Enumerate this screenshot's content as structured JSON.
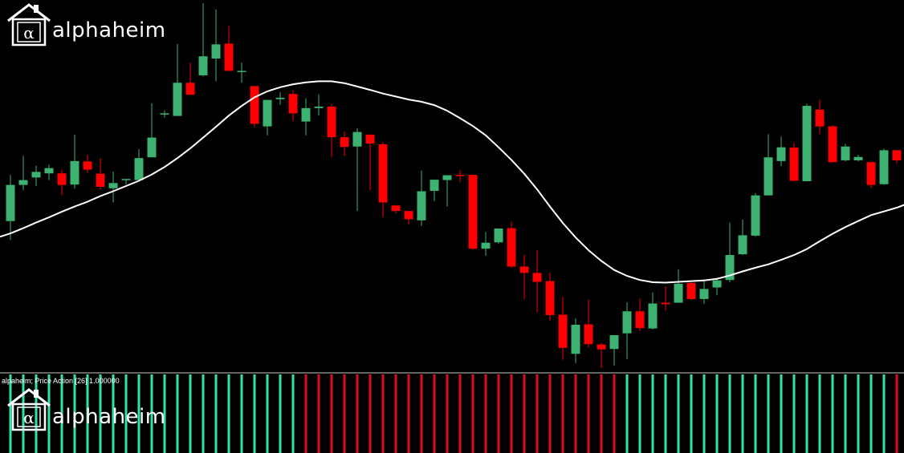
{
  "brand": {
    "name": "alphaheim",
    "symbol": "α"
  },
  "indicator": {
    "label": "alpaheim; Price Action [26] 1.000000"
  },
  "colors": {
    "background": "#000000",
    "bull": "#3cb371",
    "bear": "#ff0000",
    "ma_line": "#ffffff",
    "hist_bull": "#33e6a0",
    "hist_bear": "#e01010",
    "separator": "#c8c8c8"
  },
  "chart_data": {
    "type": "candlestick",
    "title": "",
    "xlabel": "",
    "ylabel": "",
    "ylim": [
      0,
      100
    ],
    "grid": false,
    "ohlc": [
      [
        40.7,
        50.4,
        53.1,
        35.6
      ],
      [
        50.4,
        51.7,
        58.2,
        49.0
      ],
      [
        52.4,
        53.9,
        55.6,
        50.1
      ],
      [
        53.5,
        54.9,
        55.8,
        51.7
      ],
      [
        53.5,
        50.4,
        54.5,
        47.7
      ],
      [
        50.5,
        56.8,
        63.9,
        49.4
      ],
      [
        56.7,
        54.5,
        58.5,
        53.7
      ],
      [
        53.4,
        49.9,
        57.6,
        49.2
      ],
      [
        49.5,
        50.9,
        54.0,
        45.7
      ],
      [
        51.8,
        52.0,
        52.0,
        50.5
      ],
      [
        51.7,
        57.6,
        60.0,
        51.7
      ],
      [
        57.8,
        63.1,
        72.3,
        57.8
      ],
      [
        69.4,
        69.6,
        70.4,
        68.5
      ],
      [
        68.9,
        77.8,
        88.2,
        68.9
      ],
      [
        77.8,
        74.6,
        83.2,
        74.6
      ],
      [
        79.8,
        84.9,
        99.1,
        79.5
      ],
      [
        84.3,
        88.1,
        97.5,
        78.2
      ],
      [
        88.3,
        81.0,
        93.0,
        81.0
      ],
      [
        81.0,
        81.0,
        83.2,
        77.8
      ],
      [
        76.9,
        66.8,
        76.9,
        65.8
      ],
      [
        66.1,
        73.2,
        73.2,
        63.7
      ],
      [
        73.4,
        73.8,
        75.3,
        71.9
      ],
      [
        74.8,
        69.6,
        75.8,
        67.5
      ],
      [
        67.4,
        71.0,
        73.6,
        63.7
      ],
      [
        71.0,
        71.4,
        74.7,
        69.0
      ],
      [
        71.4,
        63.2,
        72.1,
        57.8
      ],
      [
        63.2,
        60.6,
        64.7,
        58.1
      ],
      [
        60.7,
        64.6,
        65.6,
        43.4
      ],
      [
        63.9,
        61.5,
        63.9,
        49.0
      ],
      [
        61.3,
        45.7,
        61.9,
        41.7
      ],
      [
        44.9,
        43.4,
        43.4,
        42.7
      ],
      [
        43.4,
        41.2,
        41.6,
        39.7
      ],
      [
        40.9,
        48.7,
        54.3,
        39.4
      ],
      [
        48.8,
        51.8,
        51.8,
        46.0
      ],
      [
        51.7,
        53.0,
        52.9,
        44.6
      ],
      [
        53.1,
        53.0,
        54.3,
        51.1
      ],
      [
        53.1,
        33.3,
        53.2,
        33.0
      ],
      [
        33.3,
        34.9,
        37.8,
        31.4
      ],
      [
        35.0,
        38.7,
        38.7,
        34.6
      ],
      [
        38.8,
        28.5,
        40.5,
        28.2
      ],
      [
        28.5,
        26.8,
        31.7,
        19.8
      ],
      [
        26.8,
        24.4,
        32.9,
        16.3
      ],
      [
        24.6,
        15.5,
        26.8,
        13.9
      ],
      [
        15.6,
        6.7,
        20.4,
        3.5
      ],
      [
        5.1,
        12.9,
        14.6,
        2.6
      ],
      [
        13.0,
        7.7,
        19.7,
        6.8
      ],
      [
        7.6,
        6.3,
        8.0,
        1.3
      ],
      [
        6.4,
        10.1,
        10.1,
        1.9
      ],
      [
        10.6,
        16.5,
        18.9,
        3.7
      ],
      [
        16.5,
        12.0,
        19.9,
        11.2
      ],
      [
        11.9,
        18.6,
        21.6,
        11.6
      ],
      [
        18.8,
        18.4,
        23.2,
        16.7
      ],
      [
        18.8,
        23.9,
        27.8,
        18.9
      ],
      [
        24.1,
        19.8,
        24.8,
        19.5
      ],
      [
        19.8,
        22.5,
        25.1,
        18.5
      ],
      [
        22.9,
        24.8,
        25.5,
        20.9
      ],
      [
        24.9,
        31.6,
        40.3,
        24.3
      ],
      [
        31.8,
        36.9,
        41.1,
        31.6
      ],
      [
        36.8,
        47.6,
        48.2,
        36.5
      ],
      [
        47.6,
        57.8,
        64.0,
        47.6
      ],
      [
        56.8,
        60.5,
        63.4,
        55.4
      ],
      [
        60.4,
        51.5,
        61.6,
        51.6
      ],
      [
        51.4,
        71.6,
        72.2,
        51.3
      ],
      [
        70.6,
        66.1,
        73.2,
        64.0
      ],
      [
        66.1,
        56.5,
        66.4,
        56.5
      ],
      [
        57.0,
        60.7,
        61.4,
        56.7
      ],
      [
        57.0,
        57.9,
        58.5,
        56.7
      ],
      [
        56.5,
        50.4,
        56.5,
        49.5
      ],
      [
        50.6,
        59.7,
        60.1,
        50.4
      ],
      [
        59.7,
        57.0,
        59.6,
        56.2
      ],
      [
        57.0,
        46.6,
        57.6,
        44.0
      ],
      [
        46.2,
        50.3,
        50.8,
        46.3
      ],
      [
        50.0,
        48.2,
        51.1,
        47.0
      ],
      [
        49.0,
        38.9,
        49.4,
        38.4
      ]
    ],
    "moving_average": {
      "period": 26,
      "values": [
        37.4,
        38.8,
        40.3,
        41.7,
        43.2,
        44.6,
        45.9,
        47.4,
        48.7,
        50.1,
        51.5,
        53.2,
        55.2,
        57.6,
        60.2,
        63.1,
        66.0,
        69.0,
        71.6,
        73.9,
        75.5,
        76.6,
        77.4,
        77.9,
        78.2,
        78.2,
        77.7,
        76.8,
        75.9,
        74.9,
        74.1,
        73.3,
        72.7,
        71.8,
        70.3,
        68.3,
        66.2,
        63.7,
        60.5,
        57.1,
        53.4,
        49.2,
        44.6,
        40.2,
        36.3,
        32.9,
        30.0,
        27.6,
        26.0,
        24.9,
        24.3,
        24.2,
        24.4,
        24.6,
        24.8,
        25.2,
        26.1,
        27.2,
        28.2,
        29.1,
        30.3,
        31.6,
        33.2,
        35.3,
        37.3,
        39.1,
        40.7,
        42.3,
        43.3,
        44.3,
        45.6,
        46.6,
        46.8,
        46.2
      ]
    },
    "histogram": {
      "label": "alpaheim; Price Action [26] 1.000000",
      "direction": [
        "up",
        "up",
        "up",
        "up",
        "up",
        "up",
        "up",
        "up",
        "up",
        "up",
        "up",
        "up",
        "up",
        "up",
        "up",
        "up",
        "up",
        "up",
        "up",
        "up",
        "up",
        "up",
        "up",
        "down",
        "down",
        "down",
        "down",
        "down",
        "down",
        "down",
        "down",
        "down",
        "down",
        "down",
        "down",
        "down",
        "down",
        "down",
        "down",
        "down",
        "down",
        "down",
        "down",
        "down",
        "down",
        "down",
        "down",
        "down",
        "up",
        "up",
        "up",
        "up",
        "up",
        "up",
        "up",
        "up",
        "up",
        "up",
        "up",
        "up",
        "up",
        "up",
        "up",
        "up",
        "up",
        "up",
        "up",
        "up",
        "up",
        "down",
        "up",
        "down",
        "up",
        "down"
      ]
    }
  }
}
